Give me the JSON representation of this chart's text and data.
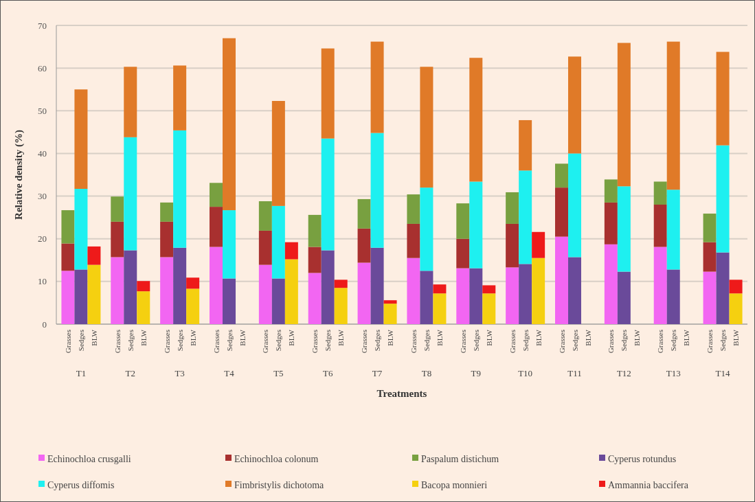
{
  "chart_data": {
    "type": "bar",
    "stacked": true,
    "xlabel": "Treatments",
    "ylabel": "Relative density (%)",
    "categories": [
      "Grasses",
      "Sedges",
      "BLW",
      "Grasses",
      "Sedges",
      "BLW",
      "Grasses",
      "Sedges",
      "BLW",
      "Grasses",
      "Sedges",
      "BLW",
      "Grasses",
      "Sedges",
      "BLW",
      "Grasses",
      "Sedges",
      "BLW",
      "Grasses",
      "Sedges",
      "BLW",
      "Grasses",
      "Sedges",
      "BLW",
      "Grasses",
      "Sedges",
      "BLW",
      "Grasses",
      "Sedges",
      "BLW",
      "Grasses",
      "Sedges",
      "BLW",
      "Grasses",
      "Sedges",
      "BLW",
      "Grasses",
      "Sedges",
      "BLW",
      "Grasses",
      "Sedges",
      "BLW"
    ],
    "annotations": [
      "T1",
      "T2",
      "T3",
      "T4",
      "T5",
      "T6",
      "T7",
      "T8",
      "T9",
      "T10",
      "T11",
      "T12",
      "T13",
      "T14"
    ],
    "ylim": [
      0,
      70
    ],
    "yticks": [
      0,
      10,
      20,
      30,
      40,
      50,
      60,
      70
    ],
    "grid": "y",
    "legend": "bottom",
    "series": [
      {
        "name": "Echinochloa crusgalli",
        "color": "#f266f2",
        "values": [
          12.5,
          null,
          null,
          15.7,
          null,
          null,
          15.7,
          null,
          null,
          18.1,
          null,
          null,
          13.9,
          null,
          null,
          12,
          null,
          null,
          14.4,
          null,
          null,
          15.5,
          null,
          null,
          13.1,
          null,
          null,
          13.3,
          null,
          null,
          20.5,
          null,
          null,
          18.7,
          null,
          null,
          18.1,
          null,
          null,
          12.3,
          null,
          null
        ]
      },
      {
        "name": "Echinochloa colonum",
        "color": "#a8302f",
        "values": [
          6.4,
          null,
          null,
          8.3,
          null,
          null,
          8.3,
          null,
          null,
          9.4,
          null,
          null,
          8,
          null,
          null,
          6.1,
          null,
          null,
          8,
          null,
          null,
          8,
          null,
          null,
          6.9,
          null,
          null,
          10.2,
          null,
          null,
          11.5,
          null,
          null,
          9.8,
          null,
          null,
          9.9,
          null,
          null,
          6.9,
          null,
          null
        ]
      },
      {
        "name": "Paspalum distichum",
        "color": "#78a040",
        "values": [
          7.8,
          null,
          null,
          5.9,
          null,
          null,
          4.5,
          null,
          null,
          5.6,
          null,
          null,
          6.9,
          null,
          null,
          7.5,
          null,
          null,
          6.9,
          null,
          null,
          6.9,
          null,
          null,
          8.3,
          null,
          null,
          7.4,
          null,
          null,
          5.6,
          null,
          null,
          5.4,
          null,
          null,
          5.4,
          null,
          null,
          6.7,
          null,
          null
        ]
      },
      {
        "name": "Cyperus rotundus",
        "color": "#6a4a9a",
        "values": [
          null,
          12.8,
          null,
          null,
          17.3,
          null,
          null,
          17.9,
          null,
          null,
          10.7,
          null,
          null,
          10.7,
          null,
          null,
          17.3,
          null,
          null,
          17.9,
          null,
          null,
          12.5,
          null,
          null,
          13.1,
          null,
          null,
          14.1,
          null,
          null,
          15.7,
          null,
          null,
          12.3,
          null,
          null,
          12.8,
          null,
          null,
          16.8,
          null
        ]
      },
      {
        "name": "Cyperus diffomis",
        "color": "#1ef0f0",
        "values": [
          null,
          18.9,
          null,
          null,
          26.5,
          null,
          null,
          27.5,
          null,
          null,
          16,
          null,
          null,
          17,
          null,
          null,
          26.2,
          null,
          null,
          26.9,
          null,
          null,
          19.5,
          null,
          null,
          20.3,
          null,
          null,
          21.9,
          null,
          null,
          24.3,
          null,
          null,
          20,
          null,
          null,
          18.7,
          null,
          null,
          25.1,
          null
        ]
      },
      {
        "name": "Fimbristylis dichotoma",
        "color": "#e07a28",
        "values": [
          null,
          23.3,
          null,
          null,
          16.5,
          null,
          null,
          15.2,
          null,
          null,
          40.3,
          null,
          null,
          24.6,
          null,
          null,
          21.1,
          null,
          null,
          21.4,
          null,
          null,
          28.3,
          null,
          null,
          29,
          null,
          null,
          11.8,
          null,
          null,
          22.7,
          null,
          null,
          33.6,
          null,
          null,
          34.7,
          null,
          null,
          21.9,
          null
        ]
      },
      {
        "name": "Bacopa monnieri",
        "color": "#f5d010",
        "values": [
          null,
          null,
          13.9,
          null,
          null,
          7.7,
          null,
          null,
          8.3,
          null,
          null,
          null,
          null,
          null,
          15.2,
          null,
          null,
          8.5,
          null,
          null,
          4.8,
          null,
          null,
          7.2,
          null,
          null,
          7.2,
          null,
          null,
          15.5,
          null,
          null,
          null,
          null,
          null,
          null,
          null,
          null,
          null,
          null,
          null,
          7.2
        ]
      },
      {
        "name": "Ammannia baccifera",
        "color": "#ee1a1a",
        "values": [
          null,
          null,
          4.3,
          null,
          null,
          2.4,
          null,
          null,
          2.6,
          null,
          null,
          null,
          null,
          null,
          4,
          null,
          null,
          1.9,
          null,
          null,
          0.8,
          null,
          null,
          2.1,
          null,
          null,
          1.9,
          null,
          null,
          6.1,
          null,
          null,
          null,
          null,
          null,
          null,
          null,
          null,
          null,
          null,
          null,
          3.2
        ]
      }
    ]
  }
}
